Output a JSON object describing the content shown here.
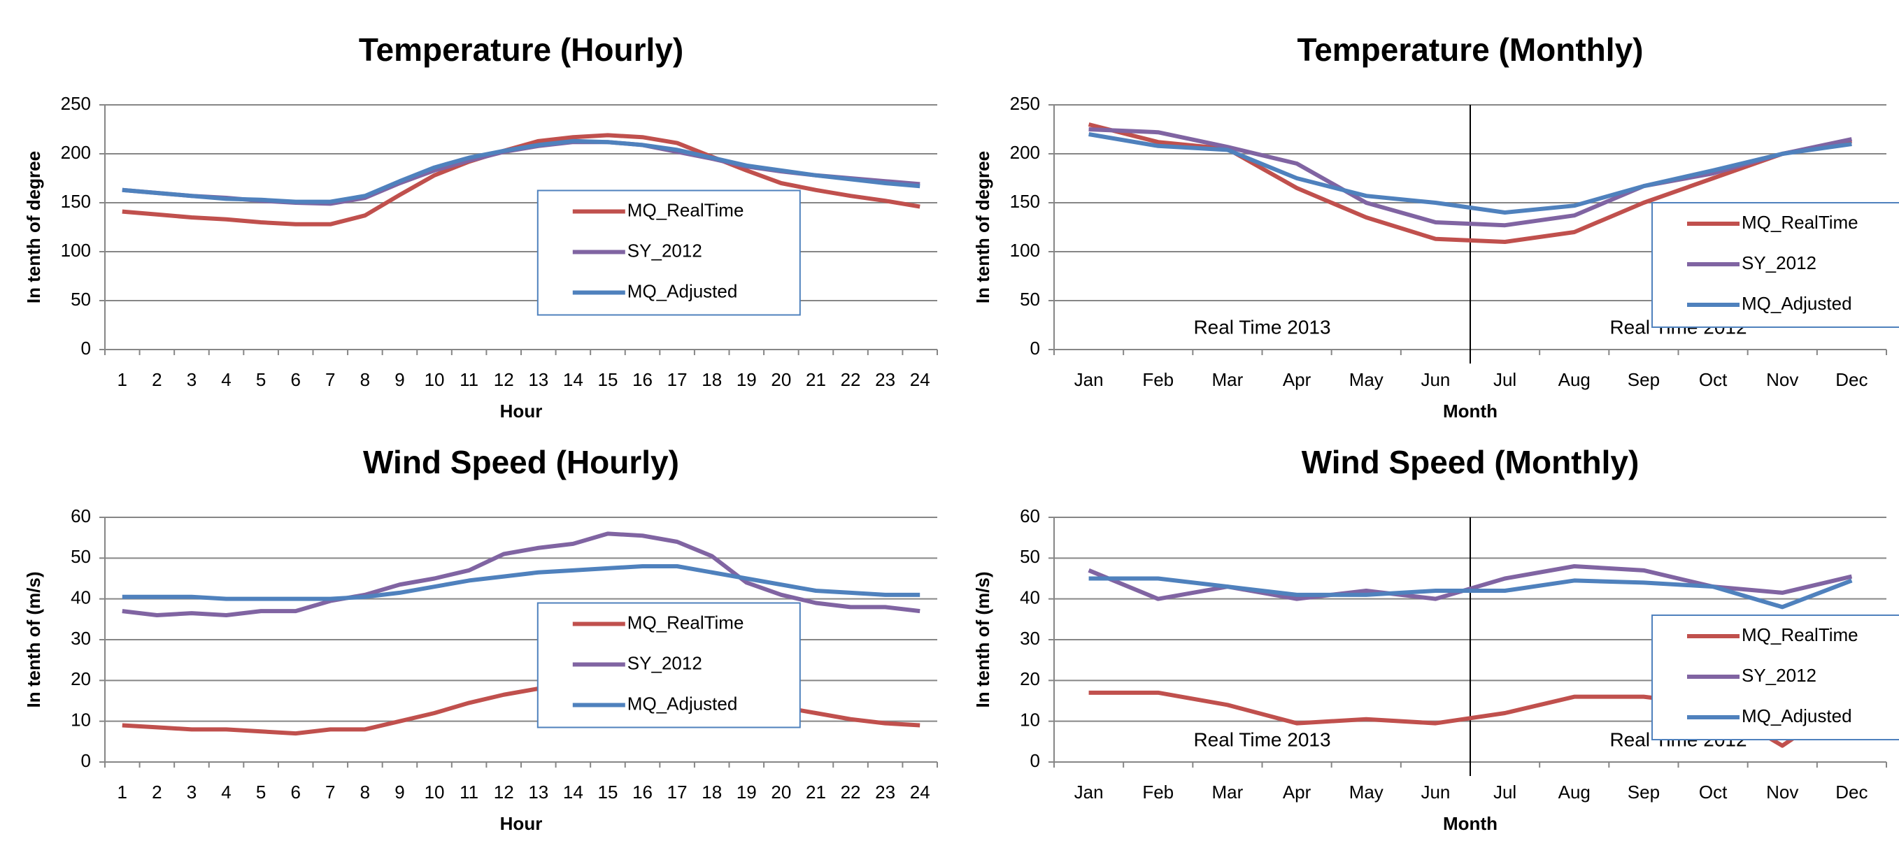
{
  "chart_data": [
    {
      "type": "line",
      "title": "Temperature (Hourly)",
      "x_label": "Hour",
      "y_label": "In tenth of degree",
      "categories": [
        "1",
        "2",
        "3",
        "4",
        "5",
        "6",
        "7",
        "8",
        "9",
        "10",
        "11",
        "12",
        "13",
        "14",
        "15",
        "16",
        "17",
        "18",
        "19",
        "20",
        "21",
        "22",
        "23",
        "24"
      ],
      "series": [
        {
          "name": "MQ_RealTime",
          "color": "#c0504d",
          "values": [
            141,
            138,
            135,
            133,
            130,
            128,
            128,
            137,
            158,
            178,
            192,
            203,
            213,
            217,
            219,
            217,
            211,
            197,
            183,
            170,
            163,
            157,
            152,
            146
          ]
        },
        {
          "name": "SY_2012",
          "color": "#8064a2",
          "values": [
            163,
            160,
            157,
            155,
            152,
            150,
            149,
            155,
            170,
            183,
            193,
            202,
            208,
            212,
            212,
            209,
            202,
            195,
            187,
            182,
            178,
            175,
            172,
            169
          ]
        },
        {
          "name": "MQ_Adjusted",
          "color": "#4f81bd",
          "values": [
            163,
            160,
            157,
            154,
            153,
            151,
            151,
            157,
            172,
            186,
            196,
            203,
            209,
            213,
            212,
            209,
            204,
            196,
            188,
            183,
            178,
            174,
            170,
            167
          ]
        }
      ],
      "ylim": [
        0,
        250
      ],
      "yticks": [
        0,
        50,
        100,
        150,
        200,
        250
      ],
      "grid": true,
      "legend_position": "center"
    },
    {
      "type": "line",
      "title": "Temperature (Monthly)",
      "x_label": "Month",
      "y_label": "In tenth of degree",
      "categories": [
        "Jan",
        "Feb",
        "Mar",
        "Apr",
        "May",
        "Jun",
        "Jul",
        "Aug",
        "Sep",
        "Oct",
        "Nov",
        "Dec"
      ],
      "series": [
        {
          "name": "MQ_RealTime",
          "color": "#c0504d",
          "values": [
            230,
            212,
            205,
            165,
            135,
            113,
            110,
            120,
            150,
            175,
            200,
            213
          ]
        },
        {
          "name": "SY_2012",
          "color": "#8064a2",
          "values": [
            225,
            222,
            207,
            190,
            150,
            130,
            127,
            137,
            167,
            180,
            200,
            215
          ]
        },
        {
          "name": "MQ_Adjusted",
          "color": "#4f81bd",
          "values": [
            220,
            208,
            204,
            175,
            157,
            150,
            140,
            147,
            167,
            183,
            200,
            210
          ]
        }
      ],
      "ylim": [
        0,
        250
      ],
      "yticks": [
        0,
        50,
        100,
        150,
        200,
        250
      ],
      "grid": true,
      "legend_position": "right",
      "annotations": [
        "Real Time 2013",
        "Real Time 2012"
      ]
    },
    {
      "type": "line",
      "title": "Wind Speed (Hourly)",
      "x_label": "Hour",
      "y_label": "In tenth of (m/s)",
      "categories": [
        "1",
        "2",
        "3",
        "4",
        "5",
        "6",
        "7",
        "8",
        "9",
        "10",
        "11",
        "12",
        "13",
        "14",
        "15",
        "16",
        "17",
        "18",
        "19",
        "20",
        "21",
        "22",
        "23",
        "24"
      ],
      "series": [
        {
          "name": "MQ_RealTime",
          "color": "#c0504d",
          "values": [
            9,
            8.5,
            8,
            8,
            7.5,
            7,
            8,
            8,
            10,
            12,
            14.5,
            16.5,
            18,
            19,
            19.5,
            20,
            20,
            19,
            16.5,
            13.5,
            12,
            10.5,
            9.5,
            9
          ]
        },
        {
          "name": "SY_2012",
          "color": "#8064a2",
          "values": [
            37,
            36,
            36.5,
            36,
            37,
            37,
            39.5,
            41,
            43.5,
            45,
            47,
            51,
            52.5,
            53.5,
            56,
            55.5,
            54,
            50.5,
            44,
            41,
            39,
            38,
            38,
            37
          ]
        },
        {
          "name": "MQ_Adjusted",
          "color": "#4f81bd",
          "values": [
            40.5,
            40.5,
            40.5,
            40,
            40,
            40,
            40,
            40.5,
            41.5,
            43,
            44.5,
            45.5,
            46.5,
            47,
            47.5,
            48,
            48,
            46.5,
            45,
            43.5,
            42,
            41.5,
            41,
            41
          ]
        }
      ],
      "ylim": [
        0,
        60
      ],
      "yticks": [
        0,
        10,
        20,
        30,
        40,
        50,
        60
      ],
      "grid": true,
      "legend_position": "center"
    },
    {
      "type": "line",
      "title": "Wind Speed (Monthly)",
      "x_label": "Month",
      "y_label": "In tenth of (m/s)",
      "categories": [
        "Jan",
        "Feb",
        "Mar",
        "Apr",
        "May",
        "Jun",
        "Jul",
        "Aug",
        "Sep",
        "Oct",
        "Nov",
        "Dec"
      ],
      "series": [
        {
          "name": "MQ_RealTime",
          "color": "#c0504d",
          "values": [
            17,
            17,
            14,
            9.5,
            10.5,
            9.5,
            12,
            16,
            16,
            14,
            4,
            15.5
          ]
        },
        {
          "name": "SY_2012",
          "color": "#8064a2",
          "values": [
            47,
            40,
            43,
            40,
            42,
            40,
            45,
            48,
            47,
            43,
            41.5,
            45.5
          ]
        },
        {
          "name": "MQ_Adjusted",
          "color": "#4f81bd",
          "values": [
            45,
            45,
            43,
            41,
            41,
            42,
            42,
            44.5,
            44,
            43,
            38,
            44.5
          ]
        }
      ],
      "ylim": [
        0,
        60
      ],
      "yticks": [
        0,
        10,
        20,
        30,
        40,
        50,
        60
      ],
      "grid": true,
      "legend_position": "right",
      "annotations": [
        "Real Time 2013",
        "Real Time 2012"
      ]
    }
  ]
}
